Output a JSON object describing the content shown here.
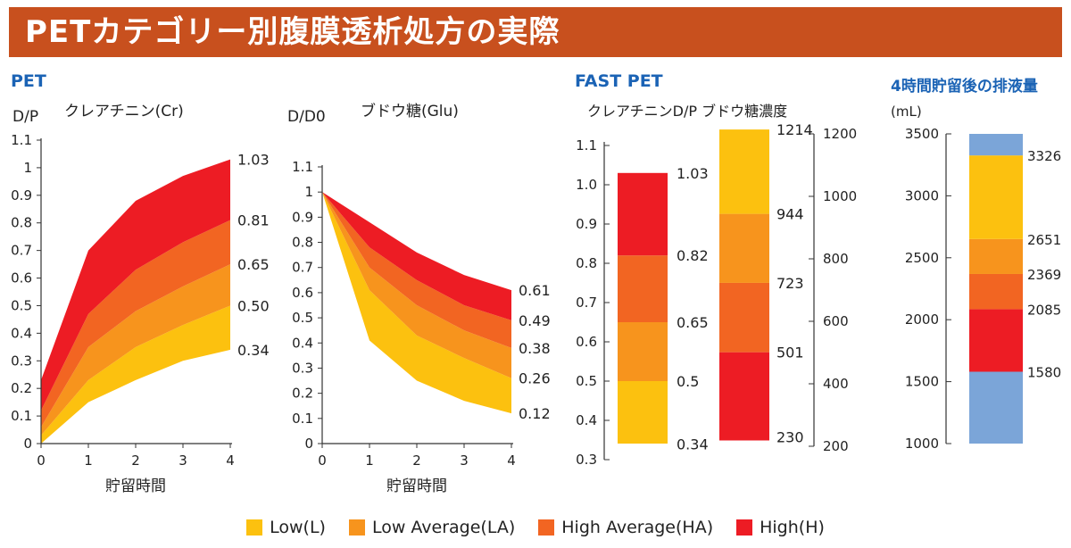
{
  "header": {
    "title": "PETカテゴリー別腹膜透析処方の実際"
  },
  "sections": {
    "pet": "PET",
    "fast_pet": "FAST PET",
    "drain": "4時間貯留後の排液量"
  },
  "colors": {
    "L": "#fcc10f",
    "LA": "#f7941d",
    "HA": "#f26522",
    "H": "#ed1c24",
    "blue": "#7ba5d8",
    "banner": "#c8501e",
    "section": "#1b63b5"
  },
  "legend": [
    {
      "key": "L",
      "label": "Low(L)"
    },
    {
      "key": "LA",
      "label": "Low Average(LA)"
    },
    {
      "key": "HA",
      "label": "High Average(HA)"
    },
    {
      "key": "H",
      "label": "High(H)"
    }
  ],
  "chart_data": [
    {
      "id": "cr",
      "type": "area",
      "title": "クレアチニン(Cr)",
      "ylabel": "D/P",
      "xlabel": "貯留時間",
      "x": [
        0,
        1,
        2,
        3,
        4
      ],
      "xticks": [
        "0",
        "1",
        "2",
        "3",
        "4"
      ],
      "ylim": [
        0,
        1.1
      ],
      "yticks": [
        "0",
        "0.1",
        "0.2",
        "0.3",
        "0.4",
        "0.5",
        "0.6",
        "0.7",
        "0.8",
        "0.9",
        "1",
        "1.1"
      ],
      "boundaries": [
        [
          0.0,
          0.15,
          0.23,
          0.3,
          0.34
        ],
        [
          0.03,
          0.23,
          0.35,
          0.43,
          0.5
        ],
        [
          0.06,
          0.35,
          0.48,
          0.57,
          0.65
        ],
        [
          0.12,
          0.47,
          0.63,
          0.73,
          0.81
        ],
        [
          0.23,
          0.7,
          0.88,
          0.97,
          1.03
        ]
      ],
      "end_labels": [
        "1.03",
        "0.81",
        "0.65",
        "0.50",
        "0.34"
      ]
    },
    {
      "id": "glu",
      "type": "area",
      "title": "ブドウ糖(Glu)",
      "ylabel": "D/D0",
      "xlabel": "貯留時間",
      "x": [
        0,
        1,
        2,
        3,
        4
      ],
      "xticks": [
        "0",
        "1",
        "2",
        "3",
        "4"
      ],
      "ylim": [
        0,
        1.1
      ],
      "yticks": [
        "0",
        "0.1",
        "0.2",
        "0.3",
        "0.4",
        "0.5",
        "0.6",
        "0.7",
        "0.8",
        "0.9",
        "1",
        "1.1"
      ],
      "boundaries": [
        [
          1.0,
          0.41,
          0.25,
          0.17,
          0.12
        ],
        [
          1.0,
          0.61,
          0.43,
          0.34,
          0.26
        ],
        [
          1.0,
          0.7,
          0.55,
          0.45,
          0.38
        ],
        [
          1.0,
          0.78,
          0.65,
          0.55,
          0.49
        ],
        [
          1.0,
          0.88,
          0.76,
          0.67,
          0.61
        ]
      ],
      "end_labels": [
        "0.61",
        "0.49",
        "0.38",
        "0.26",
        "0.12"
      ]
    },
    {
      "id": "fast",
      "type": "bar",
      "title": "クレアチニンD/P ブドウ糖濃度",
      "cr": {
        "ylim": [
          0.3,
          1.1
        ],
        "yticks": [
          "0.3",
          "0.4",
          "0.5",
          "0.6",
          "0.7",
          "0.8",
          "0.9",
          "1.0",
          "1.1"
        ],
        "stack": [
          0.34,
          0.5,
          0.65,
          0.82,
          1.03
        ],
        "labels": [
          "0.34",
          "0.5",
          "0.65",
          "0.82",
          "1.03"
        ]
      },
      "glu": {
        "ylim": [
          200,
          1200
        ],
        "yticks": [
          "200",
          "400",
          "600",
          "800",
          "1000",
          "1200"
        ],
        "stack": [
          230,
          501,
          723,
          944,
          1214
        ],
        "labels": [
          "230",
          "501",
          "723",
          "944",
          "1214"
        ]
      }
    },
    {
      "id": "drain",
      "type": "bar",
      "unit": "(mL)",
      "ylim": [
        1000,
        3500
      ],
      "yticks": [
        "1000",
        "1500",
        "2000",
        "2500",
        "3000",
        "3500"
      ],
      "stack": [
        1000,
        1580,
        2085,
        2369,
        2651,
        3326,
        3500
      ],
      "labels": [
        "1580",
        "2085",
        "2369",
        "2651",
        "3326"
      ]
    }
  ]
}
